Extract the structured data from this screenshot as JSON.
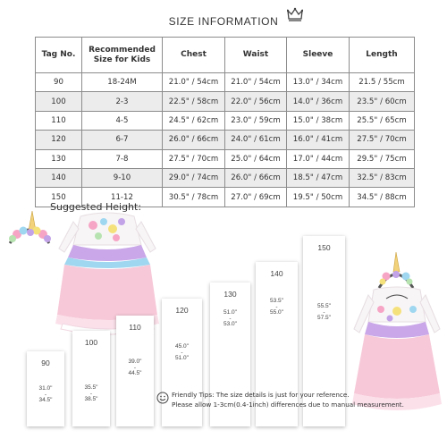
{
  "title": "SIZE INFORMATION",
  "table": {
    "headers": [
      "Tag No.",
      "Recommended Size for Kids",
      "Chest",
      "Waist",
      "Sleeve",
      "Length"
    ],
    "rows": [
      [
        "90",
        "18-24M",
        "21.0\" / 54cm",
        "21.0\" / 54cm",
        "13.0\" / 34cm",
        "21.5 / 55cm"
      ],
      [
        "100",
        "2-3",
        "22.5\" / 58cm",
        "22.0\" / 56cm",
        "14.0\" / 36cm",
        "23.5\" / 60cm"
      ],
      [
        "110",
        "4-5",
        "24.5\" / 62cm",
        "23.0\" / 59cm",
        "15.0\" / 38cm",
        "25.5\" / 65cm"
      ],
      [
        "120",
        "6-7",
        "26.0\" / 66cm",
        "24.0\" / 61cm",
        "16.0\" / 41cm",
        "27.5\" / 70cm"
      ],
      [
        "130",
        "7-8",
        "27.5\" / 70cm",
        "25.0\" / 64cm",
        "17.0\" / 44cm",
        "29.5\" / 75cm"
      ],
      [
        "140",
        "9-10",
        "29.0\" / 74cm",
        "26.0\" / 66cm",
        "18.5\" / 47cm",
        "32.5\" / 83cm"
      ],
      [
        "150",
        "11-12",
        "30.5\" / 78cm",
        "27.0\" / 69cm",
        "19.5\" / 50cm",
        "34.5\" / 88cm"
      ]
    ]
  },
  "suggested_height": {
    "title": "Suggested Height:",
    "steps": [
      {
        "tag": "90",
        "from": "31.0\"",
        "to": "34.5\""
      },
      {
        "tag": "100",
        "from": "35.5\"",
        "to": "38.5\""
      },
      {
        "tag": "110",
        "from": "39.0\"",
        "to": "44.5\""
      },
      {
        "tag": "120",
        "from": "45.0\"",
        "to": "51.0\""
      },
      {
        "tag": "130",
        "from": "51.0\"",
        "to": "53.0\""
      },
      {
        "tag": "140",
        "from": "53.5\"",
        "to": "55.0\""
      },
      {
        "tag": "150",
        "from": "55.5\"",
        "to": "57.5\""
      }
    ]
  },
  "tips": {
    "line1": "Friendly Tips:  The size details is just for your reference.",
    "line2": "Please allow 1-3cm(0.4-1inch) differences due to manual measurement."
  }
}
